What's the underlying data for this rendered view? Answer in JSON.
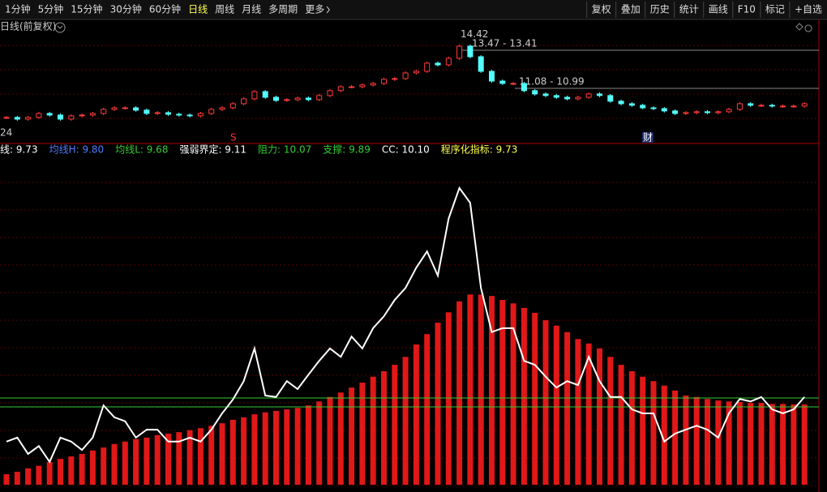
{
  "toolbar": {
    "periods": [
      "1分钟",
      "5分钟",
      "15分钟",
      "30分钟",
      "60分钟",
      "日线",
      "周线",
      "月线",
      "多周期",
      "更多"
    ],
    "active": "日线",
    "tools": [
      "复权",
      "叠加",
      "历史",
      "统计",
      "画线",
      "F10",
      "标记",
      "+自选"
    ]
  },
  "main": {
    "title": "日线(前复权)",
    "left_label": "24",
    "annotations": [
      {
        "text": "14.42",
        "value": 14.42
      },
      {
        "text": "13.47 - 13.41",
        "value": 13.41
      },
      {
        "text": "11.08 - 10.99",
        "value": 10.99
      }
    ],
    "markers": [
      "S",
      "财"
    ],
    "closes": [
      9.14,
      9.03,
      9.14,
      9.39,
      9.29,
      9.03,
      9.24,
      9.29,
      9.39,
      9.65,
      9.75,
      9.75,
      9.6,
      9.39,
      9.44,
      9.34,
      9.29,
      9.24,
      9.39,
      9.65,
      9.75,
      10.01,
      10.32,
      10.78,
      10.42,
      10.22,
      10.27,
      10.37,
      10.27,
      10.53,
      10.84,
      11.09,
      11.09,
      11.2,
      11.3,
      11.56,
      11.61,
      11.97,
      12.07,
      12.59,
      12.48,
      12.9,
      13.67,
      13.0,
      12.07,
      11.45,
      11.3,
      11.3,
      10.84,
      10.63,
      10.53,
      10.42,
      10.32,
      10.42,
      10.63,
      10.53,
      10.17,
      10.01,
      9.91,
      9.75,
      9.7,
      9.55,
      9.39,
      9.44,
      9.5,
      9.44,
      9.5,
      9.65,
      10.01,
      9.91,
      9.91,
      9.86,
      9.86,
      9.86,
      10.01
    ],
    "up_color": "#ff3b3b",
    "down_color": "#54ffff"
  },
  "indicator": {
    "legend": [
      {
        "text": "线: 9.73",
        "color": "#ffffff"
      },
      {
        "text": "均线H: 9.80",
        "color": "#4f7cff"
      },
      {
        "text": "均线L: 9.68",
        "color": "#33cc33"
      },
      {
        "text": "强弱界定: 9.11",
        "color": "#ffffff"
      },
      {
        "text": "阻力: 10.07",
        "color": "#33cc33",
        "value": 10.07
      },
      {
        "text": "支撑: 9.89",
        "color": "#33cc33",
        "value": 9.89
      },
      {
        "text": "CC: 10.10",
        "color": "#ffffff"
      },
      {
        "text": "程序化指标: 9.73",
        "color": "#ffff55"
      }
    ],
    "line": [
      9.19,
      9.27,
      8.94,
      9.1,
      8.78,
      9.27,
      9.19,
      9.02,
      9.27,
      9.92,
      9.68,
      9.6,
      9.27,
      9.43,
      9.43,
      9.19,
      9.19,
      9.27,
      9.19,
      9.43,
      9.76,
      10.04,
      10.41,
      11.07,
      10.12,
      10.09,
      10.41,
      10.25,
      10.54,
      10.82,
      11.07,
      10.9,
      11.31,
      11.07,
      11.48,
      11.72,
      12.05,
      12.29,
      12.7,
      13.03,
      12.54,
      13.69,
      14.31,
      14.01,
      12.29,
      11.4,
      11.48,
      11.48,
      10.82,
      10.74,
      10.5,
      10.28,
      10.41,
      10.33,
      10.9,
      10.41,
      10.09,
      10.09,
      9.84,
      9.76,
      9.76,
      9.19,
      9.35,
      9.43,
      9.51,
      9.43,
      9.27,
      9.76,
      10.05,
      10.0,
      10.09,
      9.84,
      9.76,
      9.84,
      10.09
    ],
    "line_color": "#ffffff",
    "bars": [
      8.53,
      8.58,
      8.65,
      8.7,
      8.78,
      8.84,
      8.89,
      8.94,
      9.01,
      9.07,
      9.14,
      9.19,
      9.24,
      9.27,
      9.32,
      9.35,
      9.38,
      9.42,
      9.46,
      9.51,
      9.56,
      9.63,
      9.68,
      9.74,
      9.78,
      9.81,
      9.84,
      9.87,
      9.92,
      10.0,
      10.09,
      10.18,
      10.28,
      10.38,
      10.5,
      10.61,
      10.74,
      10.9,
      11.15,
      11.36,
      11.59,
      11.8,
      12.02,
      12.16,
      12.16,
      12.13,
      12.05,
      11.98,
      11.89,
      11.79,
      11.64,
      11.53,
      11.4,
      11.26,
      11.17,
      11.07,
      10.9,
      10.74,
      10.61,
      10.5,
      10.41,
      10.32,
      10.22,
      10.12,
      10.09,
      10.05,
      10.02,
      10.0,
      9.99,
      9.97,
      9.97,
      9.95,
      9.95,
      9.94,
      9.94
    ],
    "bar_color": "#e01818"
  }
}
